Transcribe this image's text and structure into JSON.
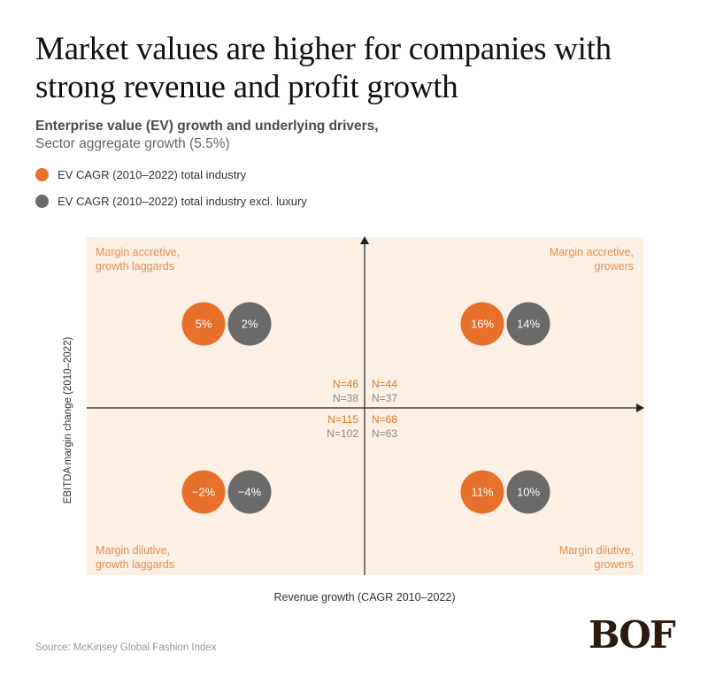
{
  "title": "Market values are higher for companies with strong revenue and profit growth",
  "subtitle": {
    "line1": "Enterprise value (EV) growth and underlying drivers,",
    "line2": "Sector aggregate growth (5.5%)"
  },
  "legend": [
    {
      "label": "EV CAGR (2010–2022) total industry",
      "color": "#e8702a"
    },
    {
      "label": "EV CAGR (2010–2022) total industry excl. luxury",
      "color": "#6a6a6a"
    }
  ],
  "chart_data": {
    "type": "quadrant",
    "xlabel": "Revenue growth (CAGR 2010–2022)",
    "ylabel": "EBITDA margin change (2010–2022)",
    "series": [
      {
        "name": "EV CAGR (2010–2022) total industry",
        "color": "#e8702a"
      },
      {
        "name": "EV CAGR (2010–2022) total industry excl. luxury",
        "color": "#6a6a6a"
      }
    ],
    "quadrants": [
      {
        "id": "top-left",
        "label_lines": [
          "Margin accretive,",
          "growth laggards"
        ],
        "values": [
          "5%",
          "2%"
        ],
        "n": [
          "N=46",
          "N=38"
        ]
      },
      {
        "id": "top-right",
        "label_lines": [
          "Margin accretive,",
          "growers"
        ],
        "values": [
          "16%",
          "14%"
        ],
        "n": [
          "N=44",
          "N=37"
        ]
      },
      {
        "id": "bottom-left",
        "label_lines": [
          "Margin dilutive,",
          "growth laggards"
        ],
        "values": [
          "−2%",
          "−4%"
        ],
        "n": [
          "N=115",
          "N=102"
        ]
      },
      {
        "id": "bottom-right",
        "label_lines": [
          "Margin dilutive,",
          "growers"
        ],
        "values": [
          "11%",
          "10%"
        ],
        "n": [
          "N=68",
          "N=63"
        ]
      }
    ]
  },
  "source": "Source: McKinsey Global Fashion Index",
  "logo": "BOF",
  "colors": {
    "background_panel": "#fcefe4",
    "label": "#e39050",
    "axis": "#222222"
  }
}
